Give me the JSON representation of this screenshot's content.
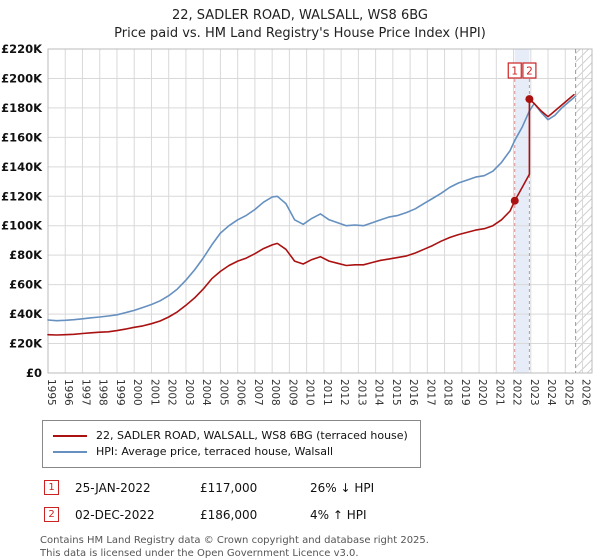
{
  "title": "22, SADLER ROAD, WALSALL, WS8 6BG",
  "subtitle": "Price paid vs. HM Land Registry's House Price Index (HPI)",
  "chart_data": {
    "type": "line",
    "x_domain": [
      1995,
      2026.55
    ],
    "y_domain": [
      0,
      220
    ],
    "y_tick_step": 20,
    "y_tick_format": "£{v}K",
    "x_ticks": [
      1995,
      1996,
      1997,
      1998,
      1999,
      2000,
      2001,
      2002,
      2003,
      2004,
      2005,
      2006,
      2007,
      2008,
      2009,
      2010,
      2011,
      2012,
      2013,
      2014,
      2015,
      2016,
      2017,
      2018,
      2019,
      2020,
      2021,
      2022,
      2023,
      2024,
      2025,
      2026
    ],
    "grid": true,
    "legend_position": "bottom",
    "band_color": "#c8d8f0",
    "hpi_end_x": 2025.6,
    "series": [
      {
        "name": "22, SADLER ROAD, WALSALL, WS8 6BG (terraced house)",
        "color": "#aa1111",
        "x": [
          1995,
          1995.5,
          1996,
          1996.5,
          1997,
          1997.5,
          1998,
          1998.5,
          1999,
          1999.5,
          2000,
          2000.5,
          2001,
          2001.5,
          2002,
          2002.5,
          2003,
          2003.5,
          2004,
          2004.5,
          2005,
          2005.5,
          2006,
          2006.5,
          2007,
          2007.5,
          2008,
          2008.3,
          2008.8,
          2009.3,
          2009.8,
          2010.3,
          2010.8,
          2011.3,
          2011.8,
          2012.3,
          2012.8,
          2013.3,
          2013.8,
          2014.3,
          2014.8,
          2015.3,
          2015.8,
          2016.3,
          2016.8,
          2017.3,
          2017.8,
          2018.3,
          2018.8,
          2019.3,
          2019.8,
          2020.3,
          2020.8,
          2021.3,
          2021.8,
          2022.07,
          2022.5,
          2022.92,
          2022.92,
          2023.2,
          2023.6,
          2024,
          2024.4,
          2024.8,
          2025.2,
          2025.5
        ],
        "values": [
          26,
          25.8,
          26,
          26.3,
          26.8,
          27.3,
          27.7,
          28,
          28.8,
          29.8,
          31,
          32,
          33.5,
          35.3,
          38,
          41.5,
          46,
          51,
          57,
          64,
          69,
          73,
          76,
          78,
          81,
          84.5,
          87,
          88,
          84,
          76,
          74,
          77,
          79,
          76,
          74.5,
          73,
          73.5,
          73.5,
          75,
          76.5,
          77.5,
          78.5,
          79.5,
          81.5,
          84,
          86.5,
          89.5,
          92,
          94,
          95.5,
          97,
          98,
          100,
          104,
          110,
          117,
          126,
          135,
          186,
          183,
          178,
          174,
          178,
          182,
          186,
          189
        ]
      },
      {
        "name": "HPI: Average price, terraced house, Walsall",
        "color": "#6590c0",
        "x": [
          1995,
          1995.5,
          1996,
          1996.5,
          1997,
          1997.5,
          1998,
          1998.5,
          1999,
          1999.5,
          2000,
          2000.5,
          2001,
          2001.5,
          2002,
          2002.5,
          2003,
          2003.5,
          2004,
          2004.5,
          2005,
          2005.5,
          2006,
          2006.5,
          2007,
          2007.5,
          2008,
          2008.3,
          2008.8,
          2009.3,
          2009.8,
          2010.3,
          2010.8,
          2011.3,
          2011.8,
          2012.3,
          2012.8,
          2013.3,
          2013.8,
          2014.3,
          2014.8,
          2015.3,
          2015.8,
          2016.3,
          2016.8,
          2017.3,
          2017.8,
          2018.3,
          2018.8,
          2019.3,
          2019.8,
          2020.3,
          2020.8,
          2021.3,
          2021.8,
          2022.07,
          2022.5,
          2022.92,
          2023.2,
          2023.6,
          2024,
          2024.4,
          2024.8,
          2025.2,
          2025.6
        ],
        "values": [
          36,
          35.5,
          35.8,
          36.2,
          36.8,
          37.5,
          38,
          38.7,
          39.5,
          41,
          42.5,
          44.5,
          46.5,
          49,
          52.5,
          57,
          63,
          70,
          78,
          87,
          95,
          100,
          104,
          107,
          111,
          116,
          119.5,
          120,
          115,
          104,
          101,
          105,
          108,
          104,
          102,
          100,
          100.5,
          100,
          102,
          104,
          106,
          107,
          109,
          111.5,
          115,
          118.5,
          122,
          126,
          129,
          131,
          133,
          134,
          137,
          143,
          151,
          158,
          167,
          178,
          183,
          177,
          172,
          175,
          180,
          184,
          188
        ]
      }
    ],
    "markers": [
      {
        "label": "1",
        "x": 2022.07,
        "y": 117
      },
      {
        "label": "2",
        "x": 2022.92,
        "y": 186
      }
    ]
  },
  "legend": {
    "items": [
      {
        "label": "22, SADLER ROAD, WALSALL, WS8 6BG (terraced house)",
        "color": "#aa1111"
      },
      {
        "label": "HPI: Average price, terraced house, Walsall",
        "color": "#6590c0"
      }
    ]
  },
  "transactions": [
    {
      "num": "1",
      "date": "25-JAN-2022",
      "price": "£117,000",
      "hpi": "26% ↓ HPI"
    },
    {
      "num": "2",
      "date": "02-DEC-2022",
      "price": "£186,000",
      "hpi": "4% ↑ HPI"
    }
  ],
  "footer": {
    "line1": "Contains HM Land Registry data © Crown copyright and database right 2025.",
    "line2": "This data is licensed under the Open Government Licence v3.0."
  }
}
